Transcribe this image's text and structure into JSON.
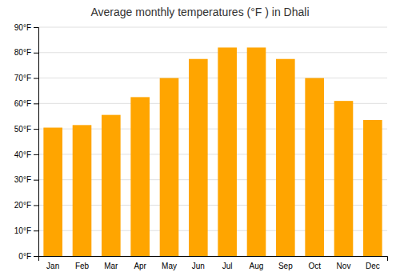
{
  "chart_data": {
    "type": "bar",
    "title": "Average monthly temperatures (°F ) in Dhali",
    "categories": [
      "Jan",
      "Feb",
      "Mar",
      "Apr",
      "May",
      "Jun",
      "Jul",
      "Aug",
      "Sep",
      "Oct",
      "Nov",
      "Dec"
    ],
    "values": [
      50.5,
      51.5,
      55.5,
      62.5,
      70,
      77.5,
      82,
      82,
      77.5,
      70,
      61,
      53.5
    ],
    "color": "#FFA500",
    "ylim": [
      0,
      90
    ],
    "yticks": [
      {
        "value": 0,
        "label": "0°F"
      },
      {
        "value": 10,
        "label": "10°F"
      },
      {
        "value": 20,
        "label": "20°F"
      },
      {
        "value": 30,
        "label": "30°F"
      },
      {
        "value": 40,
        "label": "40°F"
      },
      {
        "value": 50,
        "label": "50°F"
      },
      {
        "value": 60,
        "label": "60°F"
      },
      {
        "value": 70,
        "label": "70°F"
      },
      {
        "value": 80,
        "label": "80°F"
      },
      {
        "value": 90,
        "label": "90°F"
      }
    ],
    "grid": true
  }
}
